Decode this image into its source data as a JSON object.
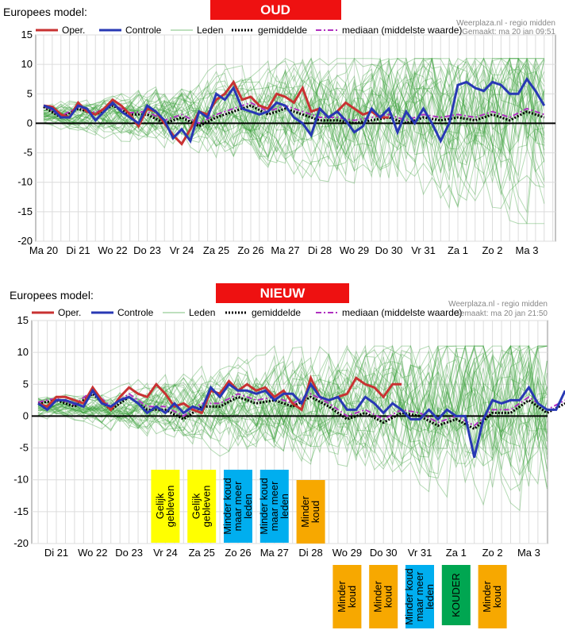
{
  "chart_data": [
    {
      "type": "line",
      "id": "oud",
      "title": "Europees model:",
      "badge": "OUD",
      "badge_color": "#ee1111",
      "source": "Weerplaza.nl - regio midden",
      "made": "Gemaakt: ma 20 jan 09:51",
      "ylim": [
        -20,
        15
      ],
      "yticks": [
        15,
        10,
        5,
        0,
        -5,
        -10,
        -15,
        -20
      ],
      "x_days": [
        "Ma 20",
        "Di 21",
        "Wo 22",
        "Do 23",
        "Vr 24",
        "Za 25",
        "Zo 26",
        "Ma 27",
        "Di 28",
        "Wo 29",
        "Do 30",
        "Vr 31",
        "Za 1",
        "Zo 2",
        "Ma 3"
      ],
      "grid": true,
      "legend": [
        {
          "name": "Oper.",
          "color": "#c83232",
          "style": "solid-thick"
        },
        {
          "name": "Controle",
          "color": "#2838b4",
          "style": "solid-thick"
        },
        {
          "name": "Leden",
          "color": "#7cc27c",
          "style": "solid-thin"
        },
        {
          "name": "gemiddelde",
          "color": "#000000",
          "style": "dotted"
        },
        {
          "name": "mediaan (middelste waarde)",
          "color": "#b030c0",
          "style": "dashdot"
        }
      ],
      "series": [
        {
          "name": "Oper.",
          "x": [
            0,
            0.25,
            0.5,
            0.75,
            1,
            1.25,
            1.5,
            1.75,
            2,
            2.25,
            2.5,
            2.75,
            3,
            3.25,
            3.5,
            3.75,
            4,
            4.25,
            4.5,
            4.75,
            5,
            5.25,
            5.5,
            5.75,
            6,
            6.25,
            6.5,
            6.75,
            7,
            7.25,
            7.5,
            7.75,
            8,
            8.25,
            8.5,
            8.75,
            9,
            9.25,
            9.5,
            9.75,
            10
          ],
          "y": [
            3,
            2.8,
            1.5,
            1,
            3.5,
            2,
            1.5,
            2.5,
            4,
            3,
            1.5,
            -0.5,
            2.5,
            2,
            0,
            -2,
            -3.5,
            -1,
            2,
            1.5,
            4,
            5,
            7,
            4,
            4.5,
            3,
            2.5,
            5,
            4.5,
            3.5,
            6,
            2,
            2.5,
            1,
            2,
            3.5,
            2.5,
            1.5,
            2,
            1,
            1
          ]
        },
        {
          "name": "Controle",
          "x": [
            0,
            0.25,
            0.5,
            0.75,
            1,
            1.25,
            1.5,
            1.75,
            2,
            2.25,
            2.5,
            2.75,
            3,
            3.25,
            3.5,
            3.75,
            4,
            4.25,
            4.5,
            4.75,
            5,
            5.25,
            5.5,
            5.75,
            6,
            6.25,
            6.5,
            6.75,
            7,
            7.25,
            7.5,
            7.75,
            8,
            8.25,
            8.5,
            8.75,
            9,
            9.25,
            9.5,
            9.75,
            10,
            10.25,
            10.5,
            10.75,
            11,
            11.25,
            11.5,
            11.75,
            12,
            12.25,
            12.5,
            12.75,
            13,
            13.25,
            13.5,
            13.75,
            14,
            14.25,
            14.5
          ],
          "y": [
            3,
            2.5,
            1,
            1,
            3,
            2.5,
            0.5,
            2,
            3.5,
            2,
            1,
            0,
            3,
            2,
            0.5,
            -2.5,
            -1,
            -3,
            2,
            1,
            5,
            4,
            6,
            2.5,
            2,
            1.5,
            2,
            3.5,
            3,
            1,
            0,
            -2,
            2.5,
            1,
            2,
            0.5,
            -1.5,
            -0.5,
            2.5,
            1,
            2.5,
            -1.5,
            2,
            0,
            2.5,
            0,
            -3,
            0,
            6.5,
            7,
            6,
            5.5,
            7,
            6.5,
            5,
            5,
            7.5,
            5.5,
            3
          ]
        },
        {
          "name": "gemiddelde",
          "x": [
            0,
            0.5,
            1,
            1.5,
            2,
            2.5,
            3,
            3.5,
            4,
            4.5,
            5,
            5.5,
            6,
            6.5,
            7,
            7.5,
            8,
            8.5,
            9,
            9.5,
            10,
            10.5,
            11,
            11.5,
            12,
            12.5,
            13,
            13.5,
            14,
            14.5
          ],
          "y": [
            2.8,
            1,
            2.5,
            1.5,
            3,
            1.5,
            1.5,
            0,
            1,
            -0.5,
            1,
            2,
            3,
            1.5,
            2.5,
            1.5,
            0.5,
            0.5,
            0,
            0.5,
            1,
            0,
            1,
            0.5,
            1,
            0.5,
            1.5,
            0.5,
            2,
            1
          ]
        },
        {
          "name": "mediaan (middelste waarde)",
          "x": [
            0,
            0.5,
            1,
            1.5,
            2,
            2.5,
            3,
            3.5,
            4,
            4.5,
            5,
            5.5,
            6,
            6.5,
            7,
            7.5,
            8,
            8.5,
            9,
            9.5,
            10,
            10.5,
            11,
            11.5,
            12,
            12.5,
            13,
            13.5,
            14,
            14.5
          ],
          "y": [
            3,
            1.2,
            2.8,
            1.8,
            3.2,
            1.8,
            2,
            0.5,
            1.5,
            0,
            1.5,
            2.5,
            3.5,
            2,
            3,
            2,
            1,
            1,
            0.5,
            1,
            1.5,
            0.5,
            1.5,
            1,
            1.5,
            1,
            2,
            1,
            2.5,
            1.5
          ]
        }
      ]
    },
    {
      "type": "line",
      "id": "nieuw",
      "title": "Europees model:",
      "badge": "NIEUW",
      "badge_color": "#ee1111",
      "source": "Weerplaza.nl - regio midden",
      "made": "Gemaakt: ma 20 jan 21:50",
      "ylim": [
        -20,
        15
      ],
      "yticks": [
        15,
        10,
        5,
        0,
        -5,
        -10,
        -15,
        -20
      ],
      "x_days": [
        "Di 21",
        "Wo 22",
        "Do 23",
        "Vr 24",
        "Za 25",
        "Zo 26",
        "Ma 27",
        "Di 28",
        "Wo 29",
        "Do 30",
        "Vr 31",
        "Za 1",
        "Zo 2",
        "Ma 3"
      ],
      "grid": true,
      "legend": [
        {
          "name": "Oper.",
          "color": "#c83232",
          "style": "solid-thick"
        },
        {
          "name": "Controle",
          "color": "#2838b4",
          "style": "solid-thick"
        },
        {
          "name": "Leden",
          "color": "#7cc27c",
          "style": "solid-thin"
        },
        {
          "name": "gemiddelde",
          "color": "#000000",
          "style": "dotted"
        },
        {
          "name": "mediaan (middelste waarde)",
          "color": "#b030c0",
          "style": "dashdot"
        }
      ],
      "series": [
        {
          "name": "Oper.",
          "x": [
            -0.5,
            -0.25,
            0,
            0.25,
            0.5,
            0.75,
            1,
            1.25,
            1.5,
            1.75,
            2,
            2.25,
            2.5,
            2.75,
            3,
            3.25,
            3.5,
            3.75,
            4,
            4.25,
            4.5,
            4.75,
            5,
            5.25,
            5.5,
            5.75,
            6,
            6.25,
            6.5,
            6.75,
            7,
            7.25,
            7.5,
            7.75,
            8,
            8.25,
            8.5,
            8.75,
            9,
            9.25,
            9.5
          ],
          "y": [
            2,
            1.5,
            3,
            3,
            2.5,
            2,
            4.5,
            2.5,
            1,
            3,
            4.5,
            3.5,
            3,
            5,
            3.5,
            1.5,
            2,
            1,
            0.5,
            4,
            3.5,
            5.5,
            4,
            5,
            4,
            4.5,
            3,
            4,
            2,
            1,
            6,
            3,
            2.5,
            3,
            3.5,
            6,
            5,
            4.5,
            3,
            5,
            5
          ]
        },
        {
          "name": "Controle",
          "x": [
            -0.5,
            -0.25,
            0,
            0.25,
            0.5,
            0.75,
            1,
            1.25,
            1.5,
            1.75,
            2,
            2.25,
            2.5,
            2.75,
            3,
            3.25,
            3.5,
            3.75,
            4,
            4.25,
            4.5,
            4.75,
            5,
            5.25,
            5.5,
            5.75,
            6,
            6.25,
            6.5,
            6.75,
            7,
            7.25,
            7.5,
            7.75,
            8,
            8.25,
            8.5,
            8.75,
            9,
            9.25,
            9.5,
            9.75,
            10,
            10.25,
            10.5,
            10.75,
            11,
            11.25,
            11.5,
            11.75,
            12,
            12.25,
            12.5,
            12.75,
            13,
            13.25,
            13.5,
            13.75,
            14
          ],
          "y": [
            2,
            1,
            2.5,
            2.5,
            2,
            1.5,
            4,
            2,
            1.5,
            2.5,
            3,
            2,
            0.5,
            1.5,
            0.5,
            2,
            0.5,
            1.5,
            1,
            4.5,
            3,
            5,
            4,
            4,
            3.5,
            4,
            2.5,
            3.5,
            3.5,
            2,
            5,
            3,
            2.5,
            3,
            1,
            1,
            3,
            2,
            0.5,
            2,
            1,
            -0.5,
            -0.5,
            1,
            -0.5,
            1,
            0,
            0,
            -6.5,
            -0.5,
            2.5,
            2,
            2.5,
            2.5,
            4.5,
            2,
            1,
            1,
            4
          ]
        },
        {
          "name": "gemiddelde",
          "x": [
            -0.5,
            0,
            0.5,
            1,
            1.5,
            2,
            2.5,
            3,
            3.5,
            4,
            4.5,
            5,
            5.5,
            6,
            6.5,
            7,
            7.5,
            8,
            8.5,
            9,
            9.5,
            10,
            10.5,
            11,
            11.5,
            12,
            12.5,
            13,
            13.5,
            14
          ],
          "y": [
            2,
            2.5,
            1.5,
            3.5,
            1,
            3,
            1,
            1,
            -0.5,
            1.5,
            1.5,
            3,
            2,
            2.5,
            1.5,
            3,
            1.5,
            -0.5,
            0.5,
            -1,
            0.5,
            0,
            -1.5,
            -0.5,
            -2,
            0.5,
            0.5,
            2.5,
            0.5,
            2
          ]
        },
        {
          "name": "mediaan (middelste waarde)",
          "x": [
            -0.5,
            0,
            0.5,
            1,
            1.5,
            2,
            2.5,
            3,
            3.5,
            4,
            4.5,
            5,
            5.5,
            6,
            6.5,
            7,
            7.5,
            8,
            8.5,
            9,
            9.5,
            10,
            10.5,
            11,
            11.5,
            12,
            12.5,
            13,
            13.5,
            14
          ],
          "y": [
            2.2,
            2.8,
            1.8,
            4,
            1.5,
            3.5,
            1.5,
            1.5,
            0,
            2,
            2,
            3.5,
            2.5,
            3,
            2,
            3.5,
            2,
            0,
            1,
            -0.5,
            1,
            0.5,
            -1,
            0,
            -1.5,
            1,
            1,
            3,
            1,
            2.5
          ]
        }
      ]
    }
  ],
  "annotations": [
    {
      "text": "Gelijk gebleven",
      "color": "#ffff00",
      "textcolor": "#000000",
      "chart": "nieuw",
      "day": 3,
      "row": "in"
    },
    {
      "text": "Gelijk gebleven",
      "color": "#ffff00",
      "textcolor": "#000000",
      "chart": "nieuw",
      "day": 4,
      "row": "in"
    },
    {
      "text": "Minder koud maar meer leden",
      "color": "#00aeef",
      "textcolor": "#000000",
      "chart": "nieuw",
      "day": 5,
      "row": "in"
    },
    {
      "text": "Minder koud maar meer leden",
      "color": "#00aeef",
      "textcolor": "#000000",
      "chart": "nieuw",
      "day": 6,
      "row": "in"
    },
    {
      "text": "Minder koud",
      "color": "#f7a800",
      "textcolor": "#000000",
      "chart": "nieuw",
      "day": 7,
      "row": "in"
    },
    {
      "text": "Minder koud",
      "color": "#f7a800",
      "textcolor": "#000000",
      "chart": "nieuw",
      "day": 8,
      "row": "below"
    },
    {
      "text": "Minder koud",
      "color": "#f7a800",
      "textcolor": "#000000",
      "chart": "nieuw",
      "day": 9,
      "row": "below"
    },
    {
      "text": "Minder koud maar meer leden",
      "color": "#00aeef",
      "textcolor": "#000000",
      "chart": "nieuw",
      "day": 10,
      "row": "below"
    },
    {
      "text": "KOUDER",
      "color": "#00a651",
      "textcolor": "#000000",
      "chart": "nieuw",
      "day": 11,
      "row": "below"
    },
    {
      "text": "Minder koud",
      "color": "#f7a800",
      "textcolor": "#000000",
      "chart": "nieuw",
      "day": 12,
      "row": "below"
    }
  ]
}
